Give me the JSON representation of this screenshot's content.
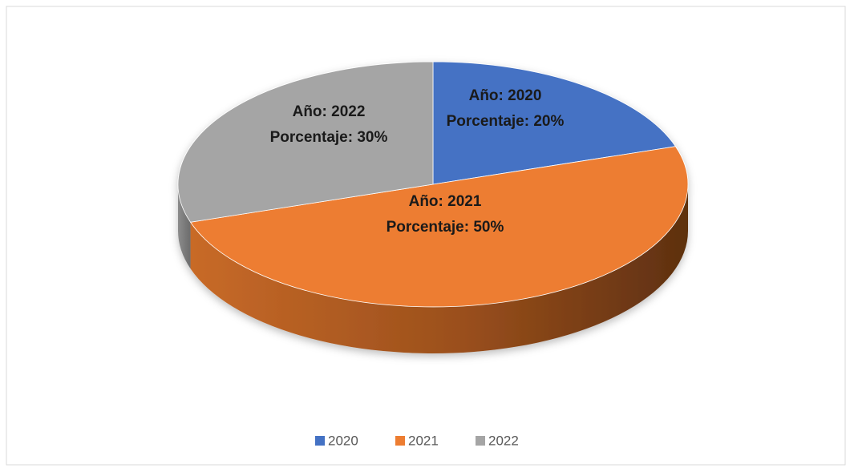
{
  "chart_data": {
    "type": "pie3d",
    "categories": [
      "2020",
      "2021",
      "2022"
    ],
    "values": [
      20,
      50,
      30
    ],
    "category_labels": [
      "Año: 2020",
      "Año: 2021",
      "Año: 2022"
    ],
    "value_labels": [
      "Porcentaje: 20%",
      "Porcentaje: 50%",
      "Porcentaje: 30%"
    ],
    "colors": [
      "#4472c4",
      "#ed7d31",
      "#a5a5a5"
    ],
    "legend": "bottom"
  }
}
